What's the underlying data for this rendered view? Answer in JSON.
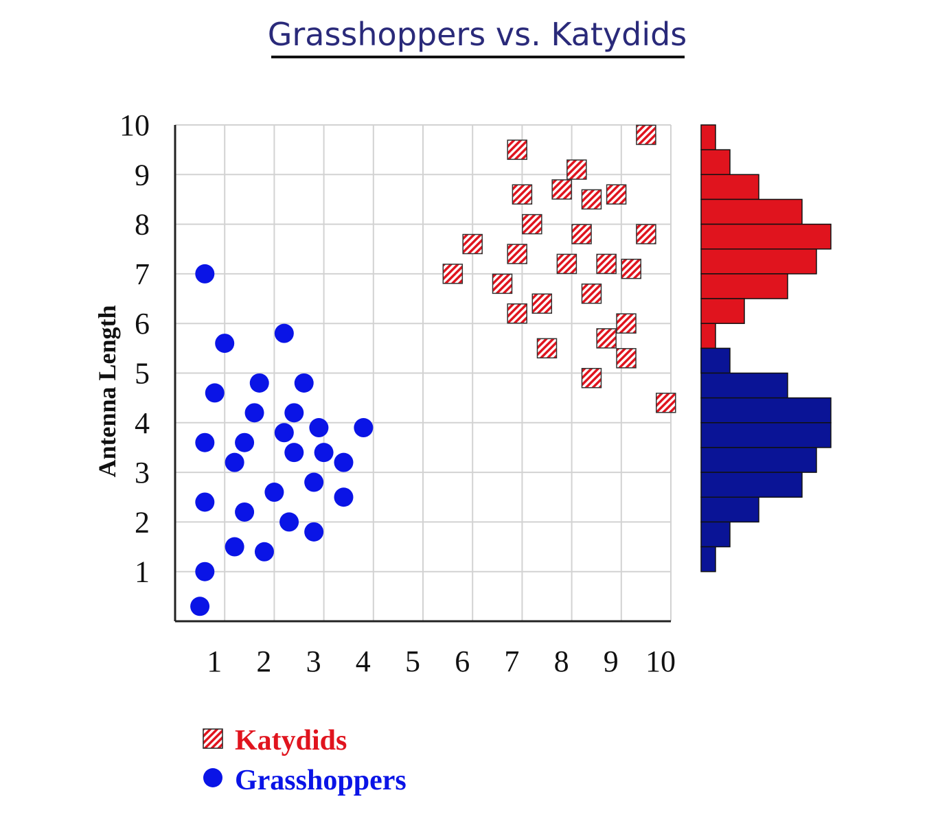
{
  "chart_data": {
    "type": "scatter",
    "title": "Grasshoppers vs. Katydids",
    "xlabel": "",
    "ylabel": "Antenna Length",
    "xlim": [
      0,
      10
    ],
    "ylim": [
      0,
      10
    ],
    "x_ticks": [
      "1",
      "2",
      "3",
      "4",
      "5",
      "6",
      "7",
      "8",
      "9",
      "10"
    ],
    "y_ticks": [
      "1",
      "2",
      "3",
      "4",
      "5",
      "6",
      "7",
      "8",
      "9",
      "10"
    ],
    "grid": true,
    "legend_position": "bottom-left",
    "series": [
      {
        "name": "Katydids",
        "color": "#e0141e",
        "marker": "hatched-square",
        "points": [
          [
            6.9,
            9.5
          ],
          [
            9.5,
            9.8
          ],
          [
            8.1,
            9.1
          ],
          [
            7.0,
            8.6
          ],
          [
            7.8,
            8.7
          ],
          [
            8.4,
            8.5
          ],
          [
            8.9,
            8.6
          ],
          [
            7.2,
            8.0
          ],
          [
            8.2,
            7.8
          ],
          [
            9.5,
            7.8
          ],
          [
            6.0,
            7.6
          ],
          [
            6.9,
            7.4
          ],
          [
            7.9,
            7.2
          ],
          [
            8.7,
            7.2
          ],
          [
            9.2,
            7.1
          ],
          [
            5.6,
            7.0
          ],
          [
            6.6,
            6.8
          ],
          [
            8.4,
            6.6
          ],
          [
            7.4,
            6.4
          ],
          [
            6.9,
            6.2
          ],
          [
            9.1,
            6.0
          ],
          [
            8.7,
            5.7
          ],
          [
            7.5,
            5.5
          ],
          [
            9.1,
            5.3
          ],
          [
            8.4,
            4.9
          ],
          [
            9.9,
            4.4
          ]
        ],
        "histogram": [
          {
            "bin": [
              9.5,
              10.0
            ],
            "count": 1
          },
          {
            "bin": [
              9.0,
              9.5
            ],
            "count": 2
          },
          {
            "bin": [
              8.5,
              9.0
            ],
            "count": 4
          },
          {
            "bin": [
              8.0,
              8.5
            ],
            "count": 7
          },
          {
            "bin": [
              7.5,
              8.0
            ],
            "count": 9
          },
          {
            "bin": [
              7.0,
              7.5
            ],
            "count": 8
          },
          {
            "bin": [
              6.5,
              7.0
            ],
            "count": 6
          },
          {
            "bin": [
              6.0,
              6.5
            ],
            "count": 3
          },
          {
            "bin": [
              5.5,
              6.0
            ],
            "count": 1
          },
          {
            "bin": [
              5.0,
              5.5
            ],
            "count": 1
          },
          {
            "bin": [
              4.5,
              5.0
            ],
            "count": 0
          }
        ]
      },
      {
        "name": "Grasshoppers",
        "color": "#0a14e6",
        "histogram_color": "#0a1496",
        "marker": "circle",
        "points": [
          [
            0.6,
            7.0
          ],
          [
            1.0,
            5.6
          ],
          [
            2.2,
            5.8
          ],
          [
            0.8,
            4.6
          ],
          [
            1.7,
            4.8
          ],
          [
            2.6,
            4.8
          ],
          [
            1.6,
            4.2
          ],
          [
            2.4,
            4.2
          ],
          [
            2.9,
            3.9
          ],
          [
            3.8,
            3.9
          ],
          [
            0.6,
            3.6
          ],
          [
            1.4,
            3.6
          ],
          [
            2.2,
            3.8
          ],
          [
            2.4,
            3.4
          ],
          [
            3.0,
            3.4
          ],
          [
            1.2,
            3.2
          ],
          [
            3.4,
            3.2
          ],
          [
            2.8,
            2.8
          ],
          [
            3.4,
            2.5
          ],
          [
            0.6,
            2.4
          ],
          [
            1.4,
            2.2
          ],
          [
            2.0,
            2.6
          ],
          [
            2.3,
            2.0
          ],
          [
            2.8,
            1.8
          ],
          [
            1.2,
            1.5
          ],
          [
            1.8,
            1.4
          ],
          [
            0.6,
            1.0
          ],
          [
            0.5,
            0.3
          ]
        ],
        "histogram": [
          {
            "bin": [
              5.0,
              5.5
            ],
            "count": 2
          },
          {
            "bin": [
              4.5,
              5.0
            ],
            "count": 6
          },
          {
            "bin": [
              4.0,
              4.5
            ],
            "count": 9
          },
          {
            "bin": [
              3.5,
              4.0
            ],
            "count": 9
          },
          {
            "bin": [
              3.0,
              3.5
            ],
            "count": 8
          },
          {
            "bin": [
              2.5,
              3.0
            ],
            "count": 7
          },
          {
            "bin": [
              2.0,
              2.5
            ],
            "count": 4
          },
          {
            "bin": [
              1.5,
              2.0
            ],
            "count": 2
          },
          {
            "bin": [
              1.0,
              1.5
            ],
            "count": 1
          }
        ]
      }
    ]
  }
}
